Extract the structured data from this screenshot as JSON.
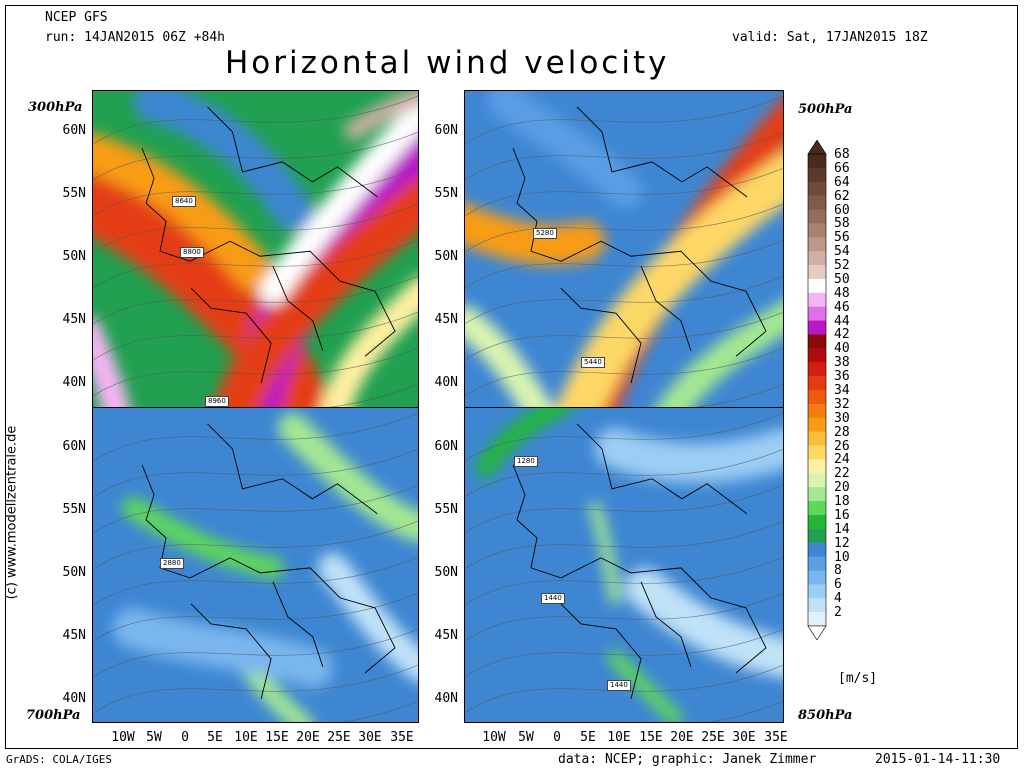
{
  "header": {
    "model": "NCEP GFS",
    "run": "run: 14JAN2015 06Z +84h",
    "valid": "valid: Sat, 17JAN2015 18Z",
    "title": "Horizontal wind velocity"
  },
  "levels": {
    "tl": "300hPa",
    "tr": "500hPa",
    "bl": "700hPa",
    "br": "850hPa"
  },
  "contour_labels": {
    "tl": [
      "8640",
      "8800",
      "8960"
    ],
    "tr": [
      "5280",
      "5440"
    ],
    "bl": [
      "2880"
    ],
    "br": [
      "1280",
      "1440",
      "1440"
    ]
  },
  "lat_labels": [
    "60N",
    "55N",
    "50N",
    "45N",
    "40N"
  ],
  "lon_labels": [
    "10W",
    "5W",
    "0",
    "5E",
    "10E",
    "15E",
    "20E",
    "25E",
    "30E",
    "35E"
  ],
  "colorbar": {
    "values": [
      "68",
      "66",
      "64",
      "62",
      "60",
      "58",
      "56",
      "54",
      "52",
      "50",
      "48",
      "46",
      "44",
      "42",
      "40",
      "38",
      "36",
      "34",
      "32",
      "30",
      "28",
      "26",
      "24",
      "22",
      "20",
      "18",
      "16",
      "14",
      "12",
      "10",
      "8",
      "6",
      "4",
      "2"
    ],
    "colors": [
      "#4a2a1a",
      "#5c3a2a",
      "#6e4a38",
      "#805c48",
      "#946e5a",
      "#a8826e",
      "#bc9888",
      "#d0b0a4",
      "#e4ccc4",
      "#ffffff",
      "#f6b4f4",
      "#e070e8",
      "#b818c8",
      "#8a0a0a",
      "#b00c0c",
      "#d41e0e",
      "#e43c12",
      "#ee5a10",
      "#f47c10",
      "#f89c18",
      "#fbbc36",
      "#fdd866",
      "#fef0a0",
      "#d8f4b0",
      "#a4e892",
      "#5ed85a",
      "#24b638",
      "#20a050",
      "#3e86d2",
      "#5a9ee4",
      "#7ab6ee",
      "#9ccdf4",
      "#c0e2f8",
      "#e2f2fc"
    ],
    "unit": "[m/s]"
  },
  "footer": {
    "left": "GrADS: COLA/IGES",
    "credits": "data: NCEP; graphic: Janek Zimmer",
    "timestamp": "2015-01-14-11:30"
  },
  "watermark": "(c) www.modellzentrale.de"
}
